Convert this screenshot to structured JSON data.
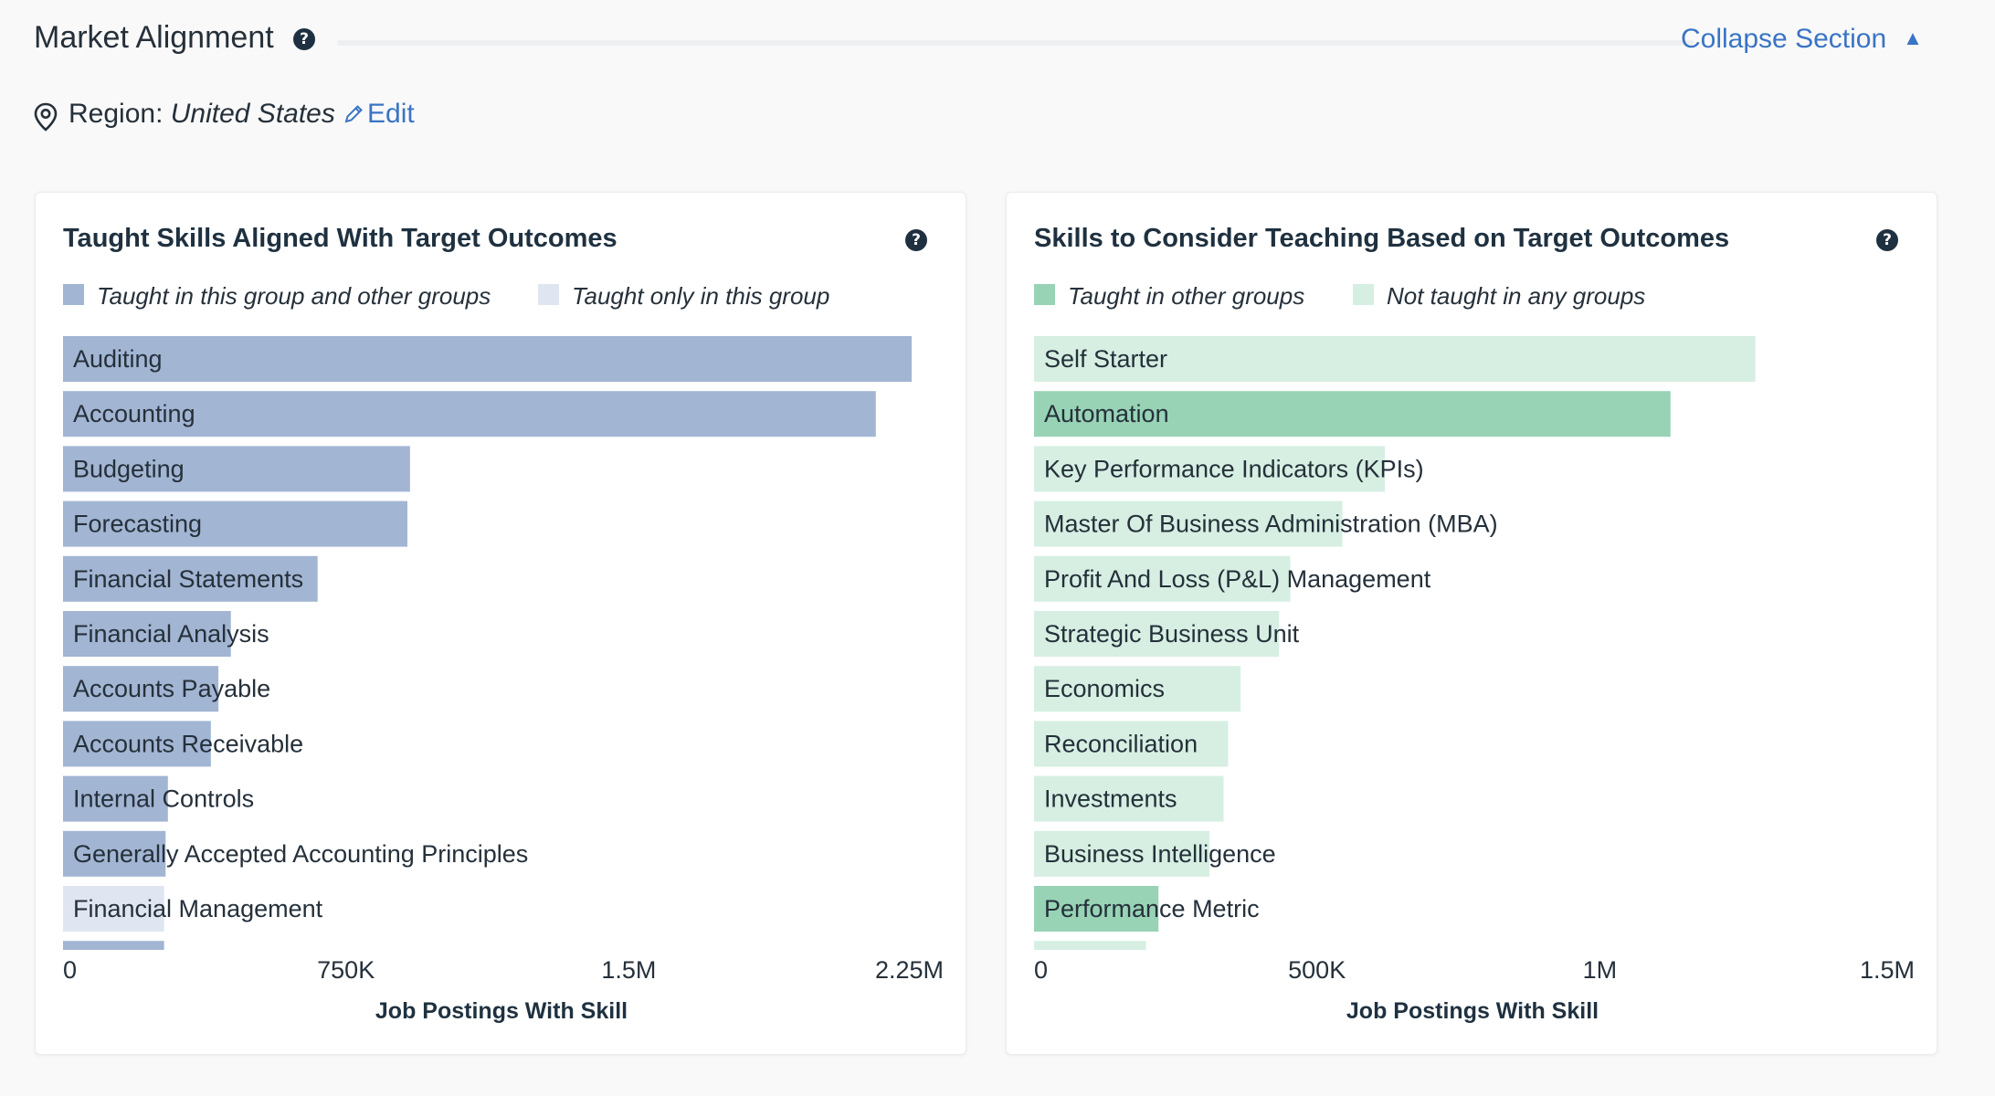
{
  "section": {
    "title": "Market Alignment",
    "help_icon": "question-circle-icon",
    "collapse_label": "Collapse Section",
    "collapse_icon": "chevron-up-icon"
  },
  "region": {
    "icon": "map-pin-icon",
    "label": "Region:",
    "value": "United States",
    "edit_label": "Edit",
    "edit_icon": "pencil-icon"
  },
  "colors": {
    "accent_link": "#3a74c4",
    "taught_group_and_other": "#a2b5d3",
    "taught_only_group": "#dfe6f1",
    "taught_other_groups": "#98d3b6",
    "not_taught": "#d6efe2"
  },
  "chart_data": [
    {
      "type": "bar",
      "orientation": "horizontal",
      "title": "Taught Skills Aligned With Target Outcomes",
      "xlabel": "Job Postings With Skill",
      "ylabel": "",
      "xlim": [
        0,
        2325000
      ],
      "x_ticks": [
        {
          "value": 0,
          "label": "0"
        },
        {
          "value": 750000,
          "label": "750K"
        },
        {
          "value": 1500000,
          "label": "1.5M"
        },
        {
          "value": 2250000,
          "label": "2.25M"
        }
      ],
      "legend": [
        {
          "label": "Taught in this group and other groups",
          "color": "#a2b5d3"
        },
        {
          "label": "Taught only in this group",
          "color": "#dfe6f1"
        }
      ],
      "categories": [
        "Auditing",
        "Accounting",
        "Budgeting",
        "Forecasting",
        "Financial Statements",
        "Financial Analysis",
        "Accounts Payable",
        "Accounts Receivable",
        "Internal Controls",
        "Generally Accepted Accounting Principles",
        "Financial Management",
        ""
      ],
      "values": [
        2250000,
        2155000,
        920000,
        913000,
        675000,
        445000,
        412000,
        392000,
        278000,
        272000,
        268000,
        268000
      ],
      "series_index": [
        0,
        0,
        0,
        0,
        0,
        0,
        0,
        0,
        0,
        0,
        1,
        0
      ],
      "grid": false
    },
    {
      "type": "bar",
      "orientation": "horizontal",
      "title": "Skills to Consider Teaching Based on Target Outcomes",
      "xlabel": "Job Postings With Skill",
      "ylabel": "",
      "xlim": [
        0,
        1550000
      ],
      "x_ticks": [
        {
          "value": 0,
          "label": "0"
        },
        {
          "value": 500000,
          "label": "500K"
        },
        {
          "value": 1000000,
          "label": "1M"
        },
        {
          "value": 1500000,
          "label": "1.5M"
        }
      ],
      "legend": [
        {
          "label": "Taught in other groups",
          "color": "#98d3b6"
        },
        {
          "label": "Not taught in any groups",
          "color": "#d6efe2"
        }
      ],
      "categories": [
        "Self Starter",
        "Automation",
        "Key Performance Indicators (KPIs)",
        "Master Of Business Administration (MBA)",
        "Profit And Loss (P&L) Management",
        "Strategic Business Unit",
        "Economics",
        "Reconciliation",
        "Investments",
        "Business Intelligence",
        "Performance Metric",
        ""
      ],
      "values": [
        1275000,
        1125000,
        620000,
        545000,
        453000,
        433000,
        365000,
        343000,
        335000,
        310000,
        220000,
        198000
      ],
      "series_index": [
        1,
        0,
        1,
        1,
        1,
        1,
        1,
        1,
        1,
        1,
        0,
        1
      ],
      "grid": false
    }
  ]
}
